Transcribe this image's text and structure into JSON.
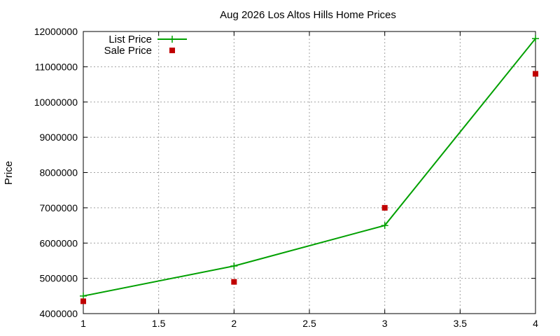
{
  "chart_data": {
    "type": "line",
    "title": "Aug 2026 Los Altos Hills Home Prices",
    "xlabel": "",
    "ylabel": "Price",
    "xlim": [
      1,
      4
    ],
    "ylim": [
      4000000,
      12000000
    ],
    "x_ticks": [
      1,
      1.5,
      2,
      2.5,
      3,
      3.5,
      4
    ],
    "x_tick_labels": [
      "1",
      "1.5",
      "2",
      "2.5",
      "3",
      "3.5",
      "4"
    ],
    "y_ticks": [
      4000000,
      5000000,
      6000000,
      7000000,
      8000000,
      9000000,
      10000000,
      11000000,
      12000000
    ],
    "y_tick_labels": [
      "4000000",
      "5000000",
      "6000000",
      "7000000",
      "8000000",
      "9000000",
      "10000000",
      "11000000",
      "12000000"
    ],
    "grid": true,
    "legend_position": "top-left",
    "series": [
      {
        "name": "List Price",
        "style": "linespoints",
        "marker": "plus",
        "color": "#00a000",
        "x": [
          1,
          2,
          3,
          4
        ],
        "y": [
          4500000,
          5350000,
          6500000,
          11800000
        ]
      },
      {
        "name": "Sale Price",
        "style": "points",
        "marker": "square",
        "color": "#c00000",
        "x": [
          1,
          2,
          3,
          4
        ],
        "y": [
          4350000,
          4900000,
          7000000,
          10800000
        ]
      }
    ]
  }
}
